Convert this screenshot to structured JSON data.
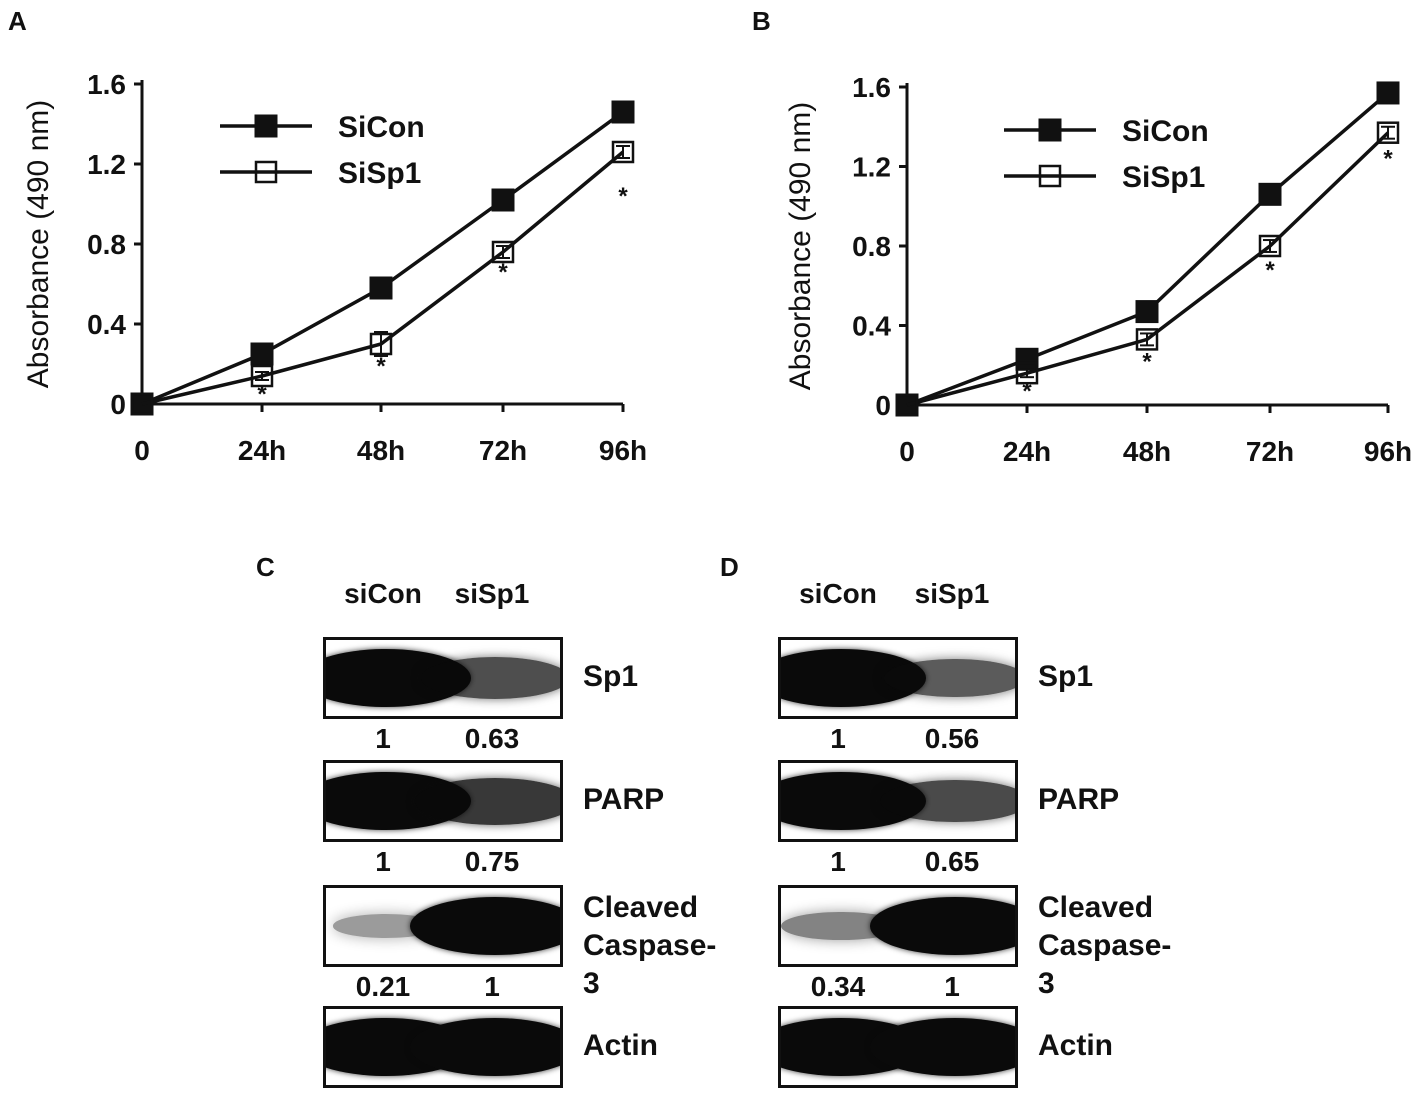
{
  "panels": {
    "A": "A",
    "B": "B",
    "C": "C",
    "D": "D"
  },
  "chart_data": [
    {
      "type": "line",
      "panel": "A",
      "categories": [
        "0",
        "24h",
        "48h",
        "72h",
        "96h"
      ],
      "ylabel": "Absorbance (490 nm)",
      "ylim": [
        0,
        1.6
      ],
      "yticks": [
        "0",
        "0.4",
        "0.8",
        "1.2",
        "1.6"
      ],
      "legend_position": "top-left",
      "series": [
        {
          "name": "SiCon",
          "marker": "filled-square",
          "values": [
            0.0,
            0.25,
            0.58,
            1.02,
            1.46
          ],
          "errors": [
            0,
            0.01,
            0.02,
            0.02,
            0.02
          ]
        },
        {
          "name": "SiSp1",
          "marker": "open-square",
          "values": [
            0.0,
            0.14,
            0.3,
            0.76,
            1.26
          ],
          "errors": [
            0,
            0.02,
            0.06,
            0.03,
            0.03
          ]
        }
      ],
      "significance": [
        "",
        "*",
        "*",
        "*",
        "*"
      ]
    },
    {
      "type": "line",
      "panel": "B",
      "categories": [
        "0",
        "24h",
        "48h",
        "72h",
        "96h"
      ],
      "ylabel": "Absorbance (490 nm)",
      "ylim": [
        0,
        1.6
      ],
      "yticks": [
        "0",
        "0.4",
        "0.8",
        "1.2",
        "1.6"
      ],
      "legend_position": "top-left",
      "series": [
        {
          "name": "SiCon",
          "marker": "filled-square",
          "values": [
            0.0,
            0.23,
            0.47,
            1.06,
            1.57
          ],
          "errors": [
            0,
            0.01,
            0.02,
            0.02,
            0.02
          ]
        },
        {
          "name": "SiSp1",
          "marker": "open-square",
          "values": [
            0.0,
            0.16,
            0.33,
            0.8,
            1.37
          ],
          "errors": [
            0,
            0.02,
            0.03,
            0.03,
            0.03
          ]
        }
      ],
      "significance": [
        "",
        "*",
        "*",
        "*",
        "*"
      ]
    }
  ],
  "blots": [
    {
      "panel": "C",
      "lanes": [
        "siCon",
        "siSp1"
      ],
      "rows": [
        {
          "protein": "Sp1",
          "quant": [
            "1",
            "0.63"
          ],
          "intensity": [
            1.0,
            0.63
          ]
        },
        {
          "protein": "PARP",
          "quant": [
            "1",
            "0.75"
          ],
          "intensity": [
            1.0,
            0.75
          ]
        },
        {
          "protein": "Cleaved Caspase-3",
          "protein_lines": [
            "Cleaved",
            "Caspase-3"
          ],
          "quant": [
            "0.21",
            "1"
          ],
          "intensity": [
            0.21,
            1.0
          ]
        },
        {
          "protein": "Actin",
          "quant": null,
          "intensity": [
            1.0,
            1.0
          ]
        }
      ]
    },
    {
      "panel": "D",
      "lanes": [
        "siCon",
        "siSp1"
      ],
      "rows": [
        {
          "protein": "Sp1",
          "quant": [
            "1",
            "0.56"
          ],
          "intensity": [
            1.0,
            0.56
          ]
        },
        {
          "protein": "PARP",
          "quant": [
            "1",
            "0.65"
          ],
          "intensity": [
            1.0,
            0.65
          ]
        },
        {
          "protein": "Cleaved Caspase-3",
          "protein_lines": [
            "Cleaved",
            "Caspase-3"
          ],
          "quant": [
            "0.34",
            "1"
          ],
          "intensity": [
            0.34,
            1.0
          ]
        },
        {
          "protein": "Actin",
          "quant": null,
          "intensity": [
            1.0,
            1.0
          ]
        }
      ]
    }
  ]
}
